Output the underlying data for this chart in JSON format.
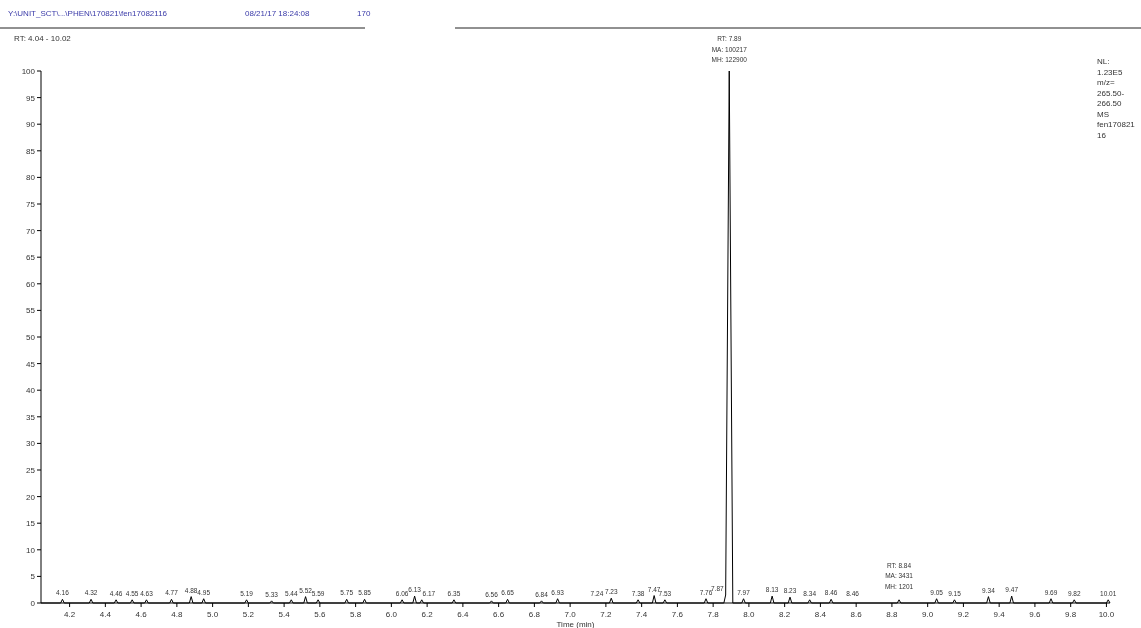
{
  "chart_data": {
    "type": "line",
    "title": "Y:\\UNIT_SCT\\...\\PHEN\\170821\\fen17082116",
    "subtitle": "RT: 4.04 - 10.02",
    "xlabel": "Time (min)",
    "xlim": [
      4.04,
      10.02
    ],
    "xticks": [
      4.2,
      4.4,
      4.6,
      4.8,
      "5.0",
      5.2,
      5.4,
      5.6,
      5.8,
      "6.0",
      6.2,
      6.4,
      6.6,
      6.8,
      "7.0",
      7.2,
      7.4,
      7.6,
      7.8,
      "8.0",
      8.2,
      8.4,
      8.6,
      8.8,
      "9.0",
      9.2,
      9.4,
      9.6,
      9.8,
      "10.0"
    ],
    "ylim": [
      0,
      100
    ],
    "yticks": [
      0,
      5,
      10,
      15,
      20,
      25,
      30,
      35,
      40,
      45,
      50,
      55,
      60,
      65,
      70,
      75,
      80,
      85,
      90,
      95,
      100
    ],
    "series": [
      {
        "color": "#000000",
        "x": [
          4.04,
          4.15,
          4.16,
          4.17,
          4.31,
          4.32,
          4.33,
          4.45,
          4.46,
          4.47,
          4.54,
          4.55,
          4.56,
          4.62,
          4.63,
          4.64,
          4.76,
          4.77,
          4.78,
          4.87,
          4.88,
          4.89,
          4.94,
          4.95,
          4.96,
          5.18,
          5.19,
          5.2,
          5.32,
          5.33,
          5.34,
          5.43,
          5.44,
          5.45,
          5.51,
          5.52,
          5.53,
          5.58,
          5.59,
          5.6,
          5.74,
          5.75,
          5.76,
          5.84,
          5.85,
          5.86,
          6.05,
          6.06,
          6.07,
          6.12,
          6.13,
          6.14,
          6.16,
          6.17,
          6.18,
          6.34,
          6.35,
          6.36,
          6.55,
          6.56,
          6.57,
          6.64,
          6.65,
          6.66,
          6.83,
          6.84,
          6.85,
          6.92,
          6.93,
          6.94,
          7.22,
          7.23,
          7.24,
          7.37,
          7.38,
          7.39,
          7.46,
          7.47,
          7.48,
          7.52,
          7.53,
          7.54,
          7.75,
          7.76,
          7.77,
          7.86,
          7.87,
          7.89,
          7.91,
          7.96,
          7.97,
          7.98,
          8.12,
          8.13,
          8.14,
          8.22,
          8.23,
          8.24,
          8.33,
          8.34,
          8.35,
          8.45,
          8.46,
          8.47,
          8.83,
          8.84,
          8.85,
          9.04,
          9.05,
          9.06,
          9.14,
          9.15,
          9.16,
          9.33,
          9.34,
          9.35,
          9.46,
          9.47,
          9.48,
          9.68,
          9.69,
          9.7,
          9.81,
          9.82,
          9.83,
          10.0,
          10.01,
          10.02
        ],
        "values": [
          0,
          0,
          0.7,
          0,
          0,
          0.7,
          0,
          0,
          0.6,
          0,
          0,
          0.6,
          0,
          0,
          0.6,
          0,
          0,
          0.7,
          0,
          0,
          1.2,
          0,
          0,
          0.8,
          0,
          0,
          0.6,
          0,
          0,
          0.4,
          0,
          0,
          0.6,
          0,
          0,
          1.2,
          0,
          0,
          0.6,
          0,
          0,
          0.7,
          0,
          0,
          0.7,
          0,
          0,
          0.6,
          0,
          0,
          1.3,
          0,
          0,
          0.6,
          0,
          0,
          0.6,
          0,
          0,
          0.4,
          0,
          0,
          0.7,
          0,
          0,
          0.4,
          0,
          0,
          0.8,
          0,
          0,
          0.9,
          0,
          0,
          0.6,
          0,
          0,
          1.4,
          0,
          0,
          0.6,
          0,
          0,
          0.8,
          0,
          0,
          1.5,
          100,
          0,
          0,
          0.8,
          0,
          0,
          1.3,
          0,
          0,
          1.1,
          0,
          0,
          0.6,
          0,
          0,
          0.7,
          0,
          0,
          0.6,
          0,
          0,
          0.8,
          0,
          0,
          0.6,
          0,
          0,
          1.2,
          0,
          0,
          1.3,
          0,
          0,
          0.8,
          0,
          0,
          0.6,
          0,
          0,
          0.6,
          0
        ]
      }
    ],
    "annotations": [
      "08/21/17 18:24:08",
      "170",
      "NL:\n1.23E5\nm/z=\n265.50-\n266.50\nMS\nfen170821\n16",
      {
        "text": "RT: 7.89\nMA: 100217\nMH: 122900",
        "x": 7.89,
        "y": 100
      },
      {
        "text": "RT: 8.84\nMA: 3431\nMH: 1201",
        "x": 8.84,
        "y": 1
      },
      {
        "text": "4.16",
        "x": 4.16,
        "y": 0.7
      },
      {
        "text": "4.32",
        "x": 4.32,
        "y": 0.7
      },
      {
        "text": "4.46",
        "x": 4.46,
        "y": 0.6
      },
      {
        "text": "4.55",
        "x": 4.55,
        "y": 0.6
      },
      {
        "text": "4.63",
        "x": 4.63,
        "y": 0.6
      },
      {
        "text": "4.77",
        "x": 4.77,
        "y": 0.7
      },
      {
        "text": "4.88",
        "x": 4.88,
        "y": 1.2
      },
      {
        "text": "4.95",
        "x": 4.95,
        "y": 0.8
      },
      {
        "text": "5.19",
        "x": 5.19,
        "y": 0.6
      },
      {
        "text": "5.33",
        "x": 5.33,
        "y": 0.4
      },
      {
        "text": "5.44",
        "x": 5.44,
        "y": 0.6
      },
      {
        "text": "5.52",
        "x": 5.52,
        "y": 1.2
      },
      {
        "text": "5.59",
        "x": 5.59,
        "y": 0.6
      },
      {
        "text": "5.75",
        "x": 5.75,
        "y": 0.7
      },
      {
        "text": "5.85",
        "x": 5.85,
        "y": 0.7
      },
      {
        "text": "6.06",
        "x": 6.06,
        "y": 0.6
      },
      {
        "text": "6.13",
        "x": 6.13,
        "y": 1.3
      },
      {
        "text": "6.17",
        "x": 6.21,
        "y": 0.6
      },
      {
        "text": "6.35",
        "x": 6.35,
        "y": 0.6
      },
      {
        "text": "6.56",
        "x": 6.56,
        "y": 0.4
      },
      {
        "text": "6.65",
        "x": 6.65,
        "y": 0.7
      },
      {
        "text": "6.84",
        "x": 6.84,
        "y": 0.4
      },
      {
        "text": "6.93",
        "x": 6.93,
        "y": 0.8
      },
      {
        "text": "7.24",
        "x": 7.15,
        "y": 0.6
      },
      {
        "text": "7.23",
        "x": 7.23,
        "y": 0.9
      },
      {
        "text": "7.38",
        "x": 7.38,
        "y": 0.6
      },
      {
        "text": "7.47",
        "x": 7.47,
        "y": 1.4
      },
      {
        "text": "7.53",
        "x": 7.53,
        "y": 0.6
      },
      {
        "text": "7.76",
        "x": 7.76,
        "y": 0.8
      },
      {
        "text": "7.87",
        "x": 7.87,
        "y": 1.5
      },
      {
        "text": "7.97",
        "x": 7.97,
        "y": 0.8
      },
      {
        "text": "8.13",
        "x": 8.13,
        "y": 1.3
      },
      {
        "text": "8.23",
        "x": 8.23,
        "y": 1.1
      },
      {
        "text": "8.34",
        "x": 8.34,
        "y": 0.6
      },
      {
        "text": "8.46",
        "x": 8.46,
        "y": 0.7
      },
      {
        "text": "8.46",
        "x": 8.58,
        "y": 0.6
      },
      {
        "text": "9.05",
        "x": 9.05,
        "y": 0.8
      },
      {
        "text": "9.15",
        "x": 9.15,
        "y": 0.6
      },
      {
        "text": "9.34",
        "x": 9.34,
        "y": 1.2
      },
      {
        "text": "9.47",
        "x": 9.47,
        "y": 1.3
      },
      {
        "text": "9.69",
        "x": 9.69,
        "y": 0.8
      },
      {
        "text": "9.82",
        "x": 9.82,
        "y": 0.6
      },
      {
        "text": "10.01",
        "x": 10.01,
        "y": 0.6
      }
    ]
  }
}
